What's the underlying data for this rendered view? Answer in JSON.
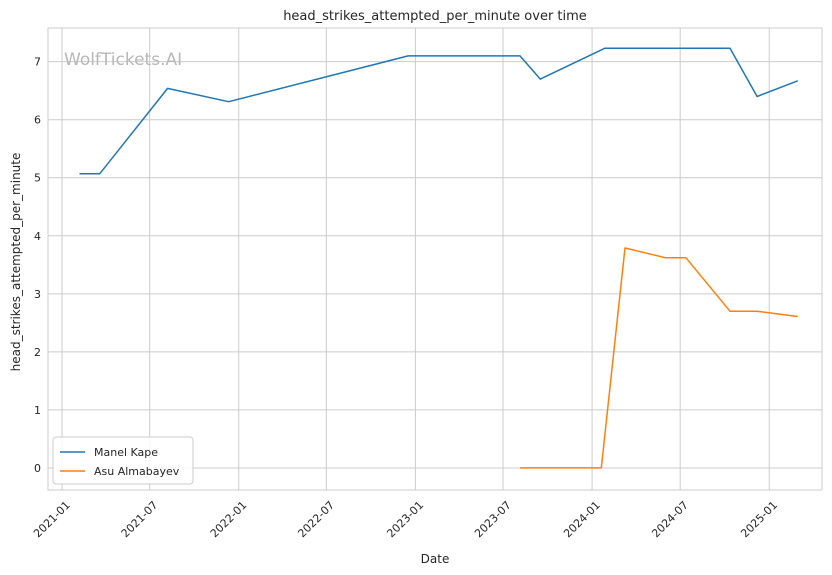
{
  "watermark": "WolfTickets.AI",
  "chart_data": {
    "type": "line",
    "title": "head_strikes_attempted_per_minute over time",
    "xlabel": "Date",
    "ylabel": "head_strikes_attempted_per_minute",
    "x_ticks": [
      "2021-01",
      "2021-07",
      "2022-01",
      "2022-07",
      "2023-01",
      "2023-07",
      "2024-01",
      "2024-07",
      "2025-01"
    ],
    "y_ticks": [
      "0",
      "1",
      "2",
      "3",
      "4",
      "5",
      "6",
      "7"
    ],
    "xlim": [
      "2020-12-03",
      "2025-04-20"
    ],
    "ylim": [
      -0.38,
      7.58
    ],
    "grid": true,
    "legend_position": "lower-left",
    "series": [
      {
        "name": "Manel Kape",
        "color": "#1f77b4",
        "points": [
          {
            "x": "2021-02-06",
            "y": 5.07
          },
          {
            "x": "2021-03-20",
            "y": 5.07
          },
          {
            "x": "2021-08-07",
            "y": 6.54
          },
          {
            "x": "2021-12-11",
            "y": 6.31
          },
          {
            "x": "2022-12-17",
            "y": 7.1
          },
          {
            "x": "2023-08-05",
            "y": 7.1
          },
          {
            "x": "2023-09-16",
            "y": 6.7
          },
          {
            "x": "2024-01-27",
            "y": 7.23
          },
          {
            "x": "2024-10-12",
            "y": 7.23
          },
          {
            "x": "2024-12-07",
            "y": 6.4
          },
          {
            "x": "2025-03-01",
            "y": 6.67
          }
        ]
      },
      {
        "name": "Asu Almabayev",
        "color": "#ff7f0e",
        "points": [
          {
            "x": "2023-08-05",
            "y": 0.0
          },
          {
            "x": "2024-01-20",
            "y": 0.0
          },
          {
            "x": "2024-03-09",
            "y": 3.79
          },
          {
            "x": "2024-06-01",
            "y": 3.62
          },
          {
            "x": "2024-07-13",
            "y": 3.62
          },
          {
            "x": "2024-10-12",
            "y": 2.7
          },
          {
            "x": "2024-12-07",
            "y": 2.7
          },
          {
            "x": "2025-03-01",
            "y": 2.61
          }
        ]
      }
    ]
  }
}
